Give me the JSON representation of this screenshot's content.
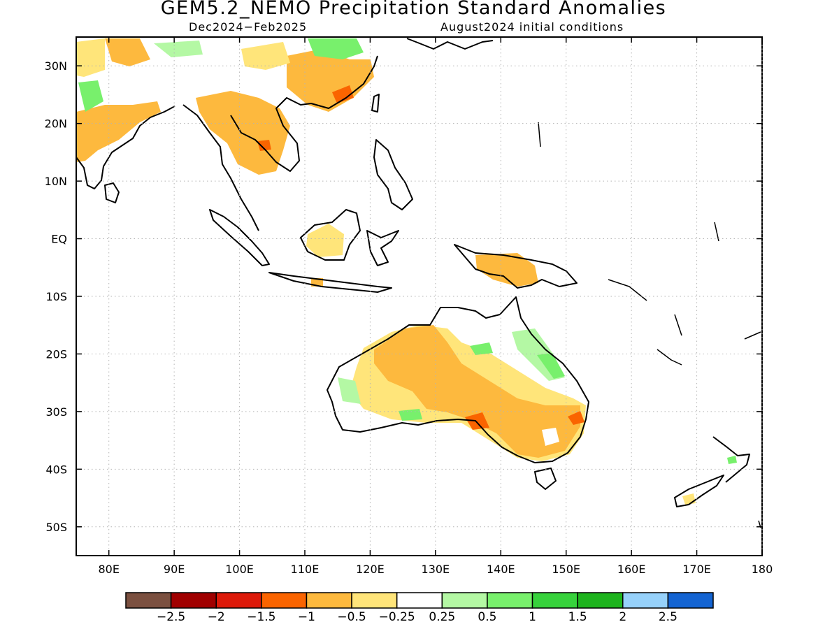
{
  "header": {
    "title": "GEM5.2_NEMO Precipitation Standard Anomalies",
    "period": "Dec2024−Feb2025",
    "init": "August2024 initial conditions"
  },
  "map": {
    "lat_ticks": [
      {
        "label": "30N",
        "lat": 30
      },
      {
        "label": "20N",
        "lat": 20
      },
      {
        "label": "10N",
        "lat": 10
      },
      {
        "label": "EQ",
        "lat": 0
      },
      {
        "label": "10S",
        "lat": -10
      },
      {
        "label": "20S",
        "lat": -20
      },
      {
        "label": "30S",
        "lat": -30
      },
      {
        "label": "40S",
        "lat": -40
      },
      {
        "label": "50S",
        "lat": -50
      }
    ],
    "lon_ticks": [
      {
        "label": "80E",
        "lon": 80
      },
      {
        "label": "90E",
        "lon": 90
      },
      {
        "label": "100E",
        "lon": 100
      },
      {
        "label": "110E",
        "lon": 110
      },
      {
        "label": "120E",
        "lon": 120
      },
      {
        "label": "130E",
        "lon": 130
      },
      {
        "label": "140E",
        "lon": 140
      },
      {
        "label": "150E",
        "lon": 150
      },
      {
        "label": "160E",
        "lon": 160
      },
      {
        "label": "170E",
        "lon": 170
      },
      {
        "label": "180",
        "lon": 180
      }
    ],
    "lon_range": [
      75,
      180
    ],
    "lat_range": [
      -55,
      35
    ],
    "grid": "dotted"
  },
  "colorbar": {
    "colors": [
      "#7b5040",
      "#a00000",
      "#dd1a0a",
      "#fa6400",
      "#fdb93e",
      "#ffe57a",
      "#ffffff",
      "#b4f8a4",
      "#78f06c",
      "#37d23c",
      "#1eb41e",
      "#96d1fa",
      "#1464d2"
    ],
    "labels": [
      "−2.5",
      "−2",
      "−1.5",
      "−1",
      "−0.5",
      "−0.25",
      "0.25",
      "0.5",
      "1",
      "1.5",
      "2",
      "2.5"
    ]
  }
}
